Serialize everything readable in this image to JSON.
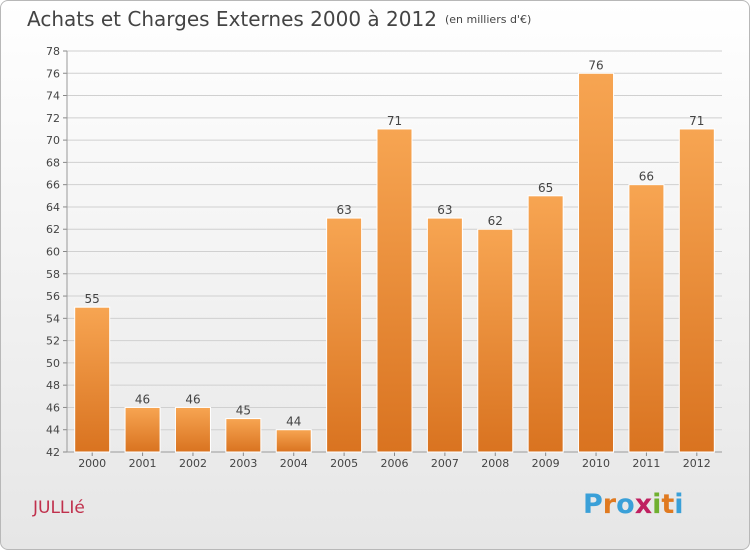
{
  "header": {
    "title": "Achats et Charges Externes 2000 à 2012",
    "subtitle": "(en milliers d'€)"
  },
  "footer": {
    "commune": "JULLIé",
    "commune_color": "#c0304c",
    "brand": {
      "letters": [
        "P",
        "r",
        "o",
        "x",
        "i",
        "t",
        "i"
      ],
      "colors": [
        "#3aa0d8",
        "#e07a20",
        "#3aa0d8",
        "#c02060",
        "#70b030",
        "#e07a20",
        "#3aa0d8"
      ]
    }
  },
  "chart_data": {
    "type": "bar",
    "title": "Achats et Charges Externes 2000 à 2012",
    "subtitle": "(en milliers d'€)",
    "categories": [
      "2000",
      "2001",
      "2002",
      "2003",
      "2004",
      "2005",
      "2006",
      "2007",
      "2008",
      "2009",
      "2010",
      "2011",
      "2012"
    ],
    "values": [
      55,
      46,
      46,
      45,
      44,
      63,
      71,
      63,
      62,
      65,
      76,
      66,
      71
    ],
    "ylim": [
      42,
      78
    ],
    "yticks": [
      42,
      44,
      46,
      48,
      50,
      52,
      54,
      56,
      58,
      60,
      62,
      64,
      66,
      68,
      70,
      72,
      74,
      76,
      78
    ],
    "grid": true,
    "data_labels": true,
    "bar_color_top": "#f7a552",
    "bar_color_bottom": "#d97320"
  }
}
